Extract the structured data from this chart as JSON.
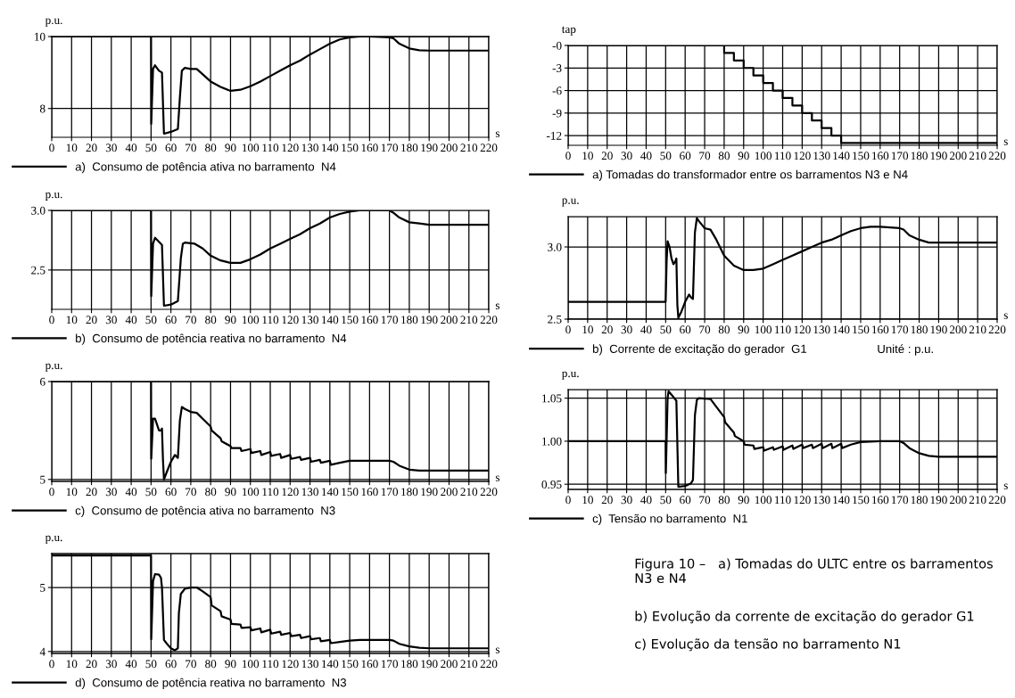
{
  "chart_data": [
    {
      "type": "line",
      "ylabel": "p.u.",
      "xlabel": "s",
      "xlim": [
        0,
        220
      ],
      "xticks": [
        0,
        10,
        20,
        30,
        40,
        50,
        60,
        70,
        80,
        90,
        100,
        110,
        120,
        130,
        140,
        150,
        160,
        170,
        180,
        190,
        200,
        210,
        220
      ],
      "ylim": [
        7.2,
        10
      ],
      "yticks": [
        8,
        10
      ],
      "grid": true,
      "legend": "bottom",
      "marker": "none",
      "line_style": "solid",
      "series": [
        {
          "name": "a)  Consumo de potência ativa no barramento  N4",
          "color": "#000000",
          "x": [
            0,
            50,
            50.1,
            51,
            52,
            54,
            55.5,
            56.5,
            60,
            63.5,
            64.5,
            65.5,
            67,
            70,
            73,
            76,
            80,
            85,
            90,
            95,
            100,
            105,
            110,
            115,
            120,
            125,
            130,
            135,
            140,
            145,
            150,
            155,
            160,
            170,
            172,
            175,
            180,
            185,
            190,
            220
          ],
          "values": [
            10,
            10,
            7.57,
            9.1,
            9.2,
            9.05,
            9.0,
            7.3,
            7.35,
            7.43,
            8.3,
            9.05,
            9.13,
            9.1,
            9.1,
            8.95,
            8.75,
            8.6,
            8.49,
            8.52,
            8.62,
            8.75,
            8.9,
            9.05,
            9.2,
            9.33,
            9.5,
            9.65,
            9.8,
            9.92,
            9.98,
            10.0,
            10.0,
            9.98,
            9.95,
            9.8,
            9.67,
            9.62,
            9.61,
            9.61
          ]
        }
      ]
    },
    {
      "type": "line",
      "ylabel": "p.u.",
      "xlabel": "s",
      "xlim": [
        0,
        220
      ],
      "xticks": [
        0,
        10,
        20,
        30,
        40,
        50,
        60,
        70,
        80,
        90,
        100,
        110,
        120,
        130,
        140,
        150,
        160,
        170,
        180,
        190,
        200,
        210,
        220
      ],
      "ylim": [
        2.17,
        3.0
      ],
      "yticks": [
        2.5,
        {
          "value": 3.0,
          "label": "3.0"
        }
      ],
      "grid": true,
      "legend": "bottom",
      "marker": "none",
      "line_style": "solid",
      "series": [
        {
          "name": "b)  Consumo de potência reativa no barramento  N4",
          "color": "#000000",
          "x": [
            0,
            50,
            50.1,
            51,
            52,
            55.5,
            56.5,
            60,
            63.5,
            65,
            66,
            67,
            72,
            76,
            80,
            85,
            90,
            95,
            100,
            105,
            110,
            115,
            120,
            125,
            130,
            135,
            140,
            145,
            150,
            155,
            170,
            172,
            175,
            180,
            185,
            190,
            220
          ],
          "values": [
            3,
            3,
            2.28,
            2.72,
            2.77,
            2.71,
            2.2,
            2.21,
            2.24,
            2.6,
            2.72,
            2.73,
            2.72,
            2.68,
            2.62,
            2.58,
            2.56,
            2.56,
            2.59,
            2.63,
            2.68,
            2.72,
            2.76,
            2.8,
            2.85,
            2.89,
            2.94,
            2.97,
            2.99,
            3.0,
            3.0,
            2.98,
            2.94,
            2.9,
            2.89,
            2.88,
            2.88
          ]
        }
      ]
    },
    {
      "type": "line",
      "ylabel": "p.u.",
      "xlabel": "s",
      "xlim": [
        0,
        220
      ],
      "xticks": [
        0,
        10,
        20,
        30,
        40,
        50,
        60,
        70,
        80,
        90,
        100,
        110,
        120,
        130,
        140,
        150,
        160,
        170,
        180,
        190,
        200,
        210,
        220
      ],
      "ylim": [
        4.98,
        6
      ],
      "yticks": [
        5,
        6
      ],
      "grid": true,
      "legend": "bottom",
      "marker": "none",
      "line_style": "solid",
      "series": [
        {
          "name": "c)  Consumo de potência ativa no barramento  N3",
          "color": "#000000",
          "x": [
            0,
            50,
            50.1,
            51,
            52,
            54,
            55,
            55.5,
            56,
            56.5,
            58,
            60,
            62,
            63.5,
            64.5,
            65.5,
            67,
            70,
            73,
            76,
            80,
            80.5,
            85,
            85.5,
            90,
            90.5,
            95,
            95.5,
            100,
            100.5,
            105,
            105.5,
            110,
            110.5,
            115,
            115.5,
            120,
            120.5,
            125,
            125.5,
            130,
            130.5,
            135,
            135.5,
            140,
            140.5,
            145,
            150,
            155,
            170,
            172,
            175,
            180,
            185,
            190,
            220
          ],
          "values": [
            6,
            6,
            5.21,
            5.62,
            5.62,
            5.5,
            5.5,
            5.52,
            5.2,
            5.0,
            5.08,
            5.18,
            5.25,
            5.22,
            5.6,
            5.74,
            5.72,
            5.69,
            5.68,
            5.62,
            5.54,
            5.5,
            5.42,
            5.39,
            5.34,
            5.32,
            5.32,
            5.29,
            5.31,
            5.27,
            5.29,
            5.25,
            5.28,
            5.24,
            5.26,
            5.22,
            5.25,
            5.21,
            5.23,
            5.2,
            5.22,
            5.18,
            5.2,
            5.17,
            5.19,
            5.15,
            5.17,
            5.19,
            5.19,
            5.19,
            5.18,
            5.14,
            5.1,
            5.09,
            5.09,
            5.09
          ]
        }
      ]
    },
    {
      "type": "line",
      "ylabel": "p.u.",
      "xlabel": "s",
      "xlim": [
        0,
        220
      ],
      "xticks": [
        0,
        10,
        20,
        30,
        40,
        50,
        60,
        70,
        80,
        90,
        100,
        110,
        120,
        130,
        140,
        150,
        160,
        170,
        180,
        190,
        200,
        210,
        220
      ],
      "ylim": [
        3.97,
        5.53
      ],
      "yticks": [
        4,
        5
      ],
      "grid": true,
      "legend": "bottom",
      "marker": "none",
      "line_style": "solid",
      "series": [
        {
          "name": "d)  Consumo de potência reativa no barramento  N3",
          "color": "#000000",
          "x": [
            0,
            50,
            50.1,
            51,
            52,
            54,
            55,
            55.5,
            56.5,
            58,
            60,
            62,
            63.5,
            64,
            65,
            67,
            70,
            73,
            76,
            80,
            80.5,
            85,
            85.5,
            90,
            90.5,
            95,
            95.5,
            100,
            100.5,
            105,
            105.5,
            110,
            110.5,
            115,
            115.5,
            120,
            120.5,
            125,
            125.5,
            130,
            130.5,
            135,
            135.5,
            140,
            140.5,
            145,
            150,
            155,
            170,
            172,
            175,
            180,
            185,
            190,
            220
          ],
          "values": [
            5.5,
            5.5,
            4.19,
            5.1,
            5.21,
            5.2,
            5.15,
            5.0,
            4.18,
            4.12,
            4.05,
            4.02,
            4.05,
            4.6,
            4.9,
            4.98,
            5.0,
            5.0,
            4.94,
            4.85,
            4.72,
            4.63,
            4.55,
            4.5,
            4.43,
            4.42,
            4.37,
            4.38,
            4.33,
            4.36,
            4.3,
            4.34,
            4.28,
            4.31,
            4.26,
            4.29,
            4.24,
            4.26,
            4.21,
            4.24,
            4.19,
            4.21,
            4.16,
            4.18,
            4.13,
            4.15,
            4.17,
            4.18,
            4.18,
            4.17,
            4.12,
            4.08,
            4.06,
            4.05,
            4.05
          ]
        }
      ]
    },
    {
      "type": "step",
      "ylabel": "tap",
      "xlabel": "s",
      "xlim": [
        0,
        220
      ],
      "xticks": [
        0,
        10,
        20,
        30,
        40,
        50,
        60,
        70,
        80,
        90,
        100,
        110,
        120,
        130,
        140,
        150,
        160,
        170,
        180,
        190,
        200,
        210,
        220
      ],
      "ylim": [
        -13.3,
        0
      ],
      "yticks": [
        {
          "value": 0,
          "label": "-0"
        },
        -3,
        -6,
        -9,
        -12
      ],
      "grid": true,
      "legend": "bottom",
      "marker": "none",
      "line_style": "solid",
      "series": [
        {
          "name": "a) Tomadas do transformador entre os barramentos N3 e N4",
          "color": "#000000",
          "x": [
            0,
            80,
            85,
            90,
            95,
            100,
            105,
            110,
            115,
            120,
            125,
            130,
            135,
            140,
            220
          ],
          "values": [
            0,
            -1,
            -2,
            -3,
            -4,
            -5,
            -6,
            -7,
            -8,
            -9,
            -10,
            -11,
            -12,
            -13,
            -13
          ]
        }
      ]
    },
    {
      "type": "line",
      "ylabel": "p.u.",
      "xlabel": "s",
      "xlim": [
        0,
        220
      ],
      "xticks": [
        0,
        10,
        20,
        30,
        40,
        50,
        60,
        70,
        80,
        90,
        100,
        110,
        120,
        130,
        140,
        150,
        160,
        170,
        180,
        190,
        200,
        210,
        220
      ],
      "ylim": [
        2.5,
        3.21
      ],
      "yticks": [
        2.5,
        {
          "value": 3.0,
          "label": "3.0"
        }
      ],
      "grid": true,
      "legend": "bottom",
      "marker": "none",
      "line_style": "solid",
      "annotations": [
        "Unité : p.u."
      ],
      "series": [
        {
          "name": "b)  Corrente de excitação do gerador  G1",
          "color": "#000000",
          "x": [
            0,
            50,
            50.5,
            51,
            52,
            53,
            54,
            55,
            55.5,
            56,
            56.5,
            58,
            60,
            62,
            63,
            64,
            65,
            66,
            67,
            70,
            73,
            76,
            80,
            85,
            90,
            95,
            100,
            105,
            110,
            115,
            120,
            125,
            130,
            135,
            140,
            145,
            150,
            155,
            160,
            170,
            172,
            175,
            180,
            185,
            190,
            220
          ],
          "values": [
            2.62,
            2.62,
            2.9,
            3.04,
            3.0,
            2.92,
            2.88,
            2.9,
            2.92,
            2.6,
            2.51,
            2.55,
            2.62,
            2.67,
            2.65,
            2.64,
            3.1,
            3.2,
            3.18,
            3.13,
            3.12,
            3.05,
            2.94,
            2.87,
            2.84,
            2.84,
            2.85,
            2.88,
            2.91,
            2.94,
            2.97,
            3.0,
            3.03,
            3.05,
            3.08,
            3.11,
            3.13,
            3.14,
            3.14,
            3.13,
            3.12,
            3.08,
            3.05,
            3.03,
            3.03,
            3.03
          ]
        }
      ]
    },
    {
      "type": "line",
      "ylabel": "p.u.",
      "xlabel": "s",
      "xlim": [
        0,
        220
      ],
      "xticks": [
        0,
        10,
        20,
        30,
        40,
        50,
        60,
        70,
        80,
        90,
        100,
        110,
        120,
        130,
        140,
        150,
        160,
        170,
        180,
        190,
        200,
        210,
        220
      ],
      "ylim": [
        0.944,
        1.06
      ],
      "yticks": [
        0.95,
        {
          "value": 1.0,
          "label": "1.00"
        },
        1.05
      ],
      "grid": true,
      "legend": "bottom",
      "marker": "none",
      "line_style": "solid",
      "annotations": [
        "Figura 10 –   a) Tomadas do ULTC entre os barramentos N3 e N4",
        "b) Evolução da corrente de excitação do gerador G1",
        "c) Evolução da tensão no barramento N1"
      ],
      "series": [
        {
          "name": "c)  Tensão no barramento  N1",
          "color": "#000000",
          "x": [
            0,
            50,
            50.1,
            51,
            51.5,
            53,
            55.5,
            56.5,
            60,
            63,
            64,
            65,
            66,
            67,
            73,
            76,
            80,
            80.5,
            85,
            85.5,
            90,
            90.5,
            95,
            95.5,
            100,
            100.5,
            105,
            105.5,
            110,
            110.5,
            115,
            115.5,
            120,
            120.5,
            125,
            125.5,
            130,
            130.5,
            135,
            135.5,
            140,
            140.5,
            145,
            150,
            160,
            170,
            172,
            175,
            180,
            185,
            190,
            220
          ],
          "values": [
            1.0,
            1.0,
            0.963,
            1.05,
            1.058,
            1.054,
            1.047,
            0.947,
            0.948,
            0.951,
            0.955,
            1.03,
            1.048,
            1.05,
            1.049,
            1.04,
            1.028,
            1.022,
            1.01,
            1.006,
            1.0,
            0.996,
            0.995,
            0.991,
            0.993,
            0.989,
            0.993,
            0.99,
            0.994,
            0.99,
            0.995,
            0.991,
            0.996,
            0.992,
            0.996,
            0.992,
            0.997,
            0.992,
            0.997,
            0.992,
            0.997,
            0.992,
            0.996,
            0.999,
            1.0,
            1.0,
            0.998,
            0.992,
            0.986,
            0.983,
            0.982,
            0.982
          ]
        }
      ]
    }
  ]
}
